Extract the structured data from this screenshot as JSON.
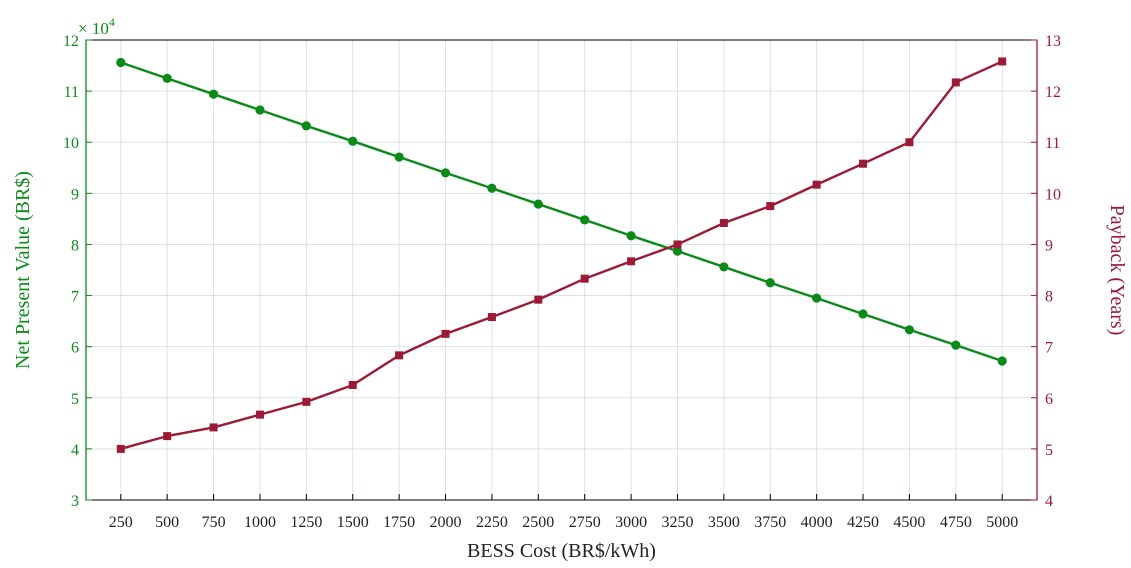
{
  "chart_data": {
    "type": "line",
    "x": [
      250,
      500,
      750,
      1000,
      1250,
      1500,
      1750,
      2000,
      2250,
      2500,
      2750,
      3000,
      3250,
      3500,
      3750,
      4000,
      4250,
      4500,
      4750,
      5000
    ],
    "xlabel": "BESS Cost (BR$/kWh)",
    "y_left": {
      "label": "Net Present Value (BR$)",
      "ylim": [
        3,
        12
      ],
      "ticks": [
        3,
        4,
        5,
        6,
        7,
        8,
        9,
        10,
        11,
        12
      ],
      "multiplier_label": "× 10",
      "multiplier_exponent": "4",
      "color": "#0b8a1a"
    },
    "y_right": {
      "label": "Payback (Years)",
      "ylim": [
        4,
        13
      ],
      "ticks": [
        4,
        5,
        6,
        7,
        8,
        9,
        10,
        11,
        12,
        13
      ],
      "color": "#9b1b36"
    },
    "series": [
      {
        "axis": "left",
        "marker": "circle",
        "color": "#0b8a1a",
        "values": [
          11.56,
          11.25,
          10.94,
          10.63,
          10.32,
          10.02,
          9.71,
          9.4,
          9.1,
          8.79,
          8.48,
          8.17,
          7.87,
          7.56,
          7.25,
          6.95,
          6.64,
          6.33,
          6.03,
          5.72
        ]
      },
      {
        "axis": "right",
        "marker": "square",
        "color": "#9b1b36",
        "values": [
          5.0,
          5.25,
          5.42,
          5.67,
          5.92,
          6.25,
          6.83,
          7.25,
          7.58,
          7.92,
          8.33,
          8.67,
          9.0,
          9.42,
          9.75,
          10.17,
          10.58,
          11.0,
          12.17,
          12.58
        ]
      }
    ],
    "grid": true,
    "legend": "none"
  }
}
